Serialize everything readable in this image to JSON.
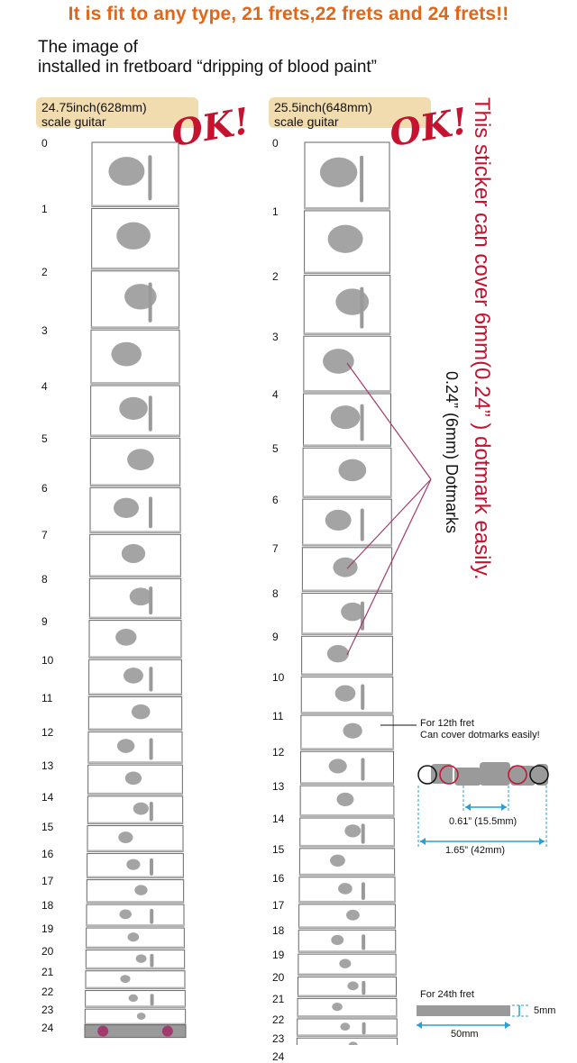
{
  "headline": "It is fit to any type, 21 frets,22 frets and 24 frets!!",
  "subtitle_line1": "The image of",
  "subtitle_line2": "installed in fretboard “dripping of blood paint”",
  "left_guitar": {
    "scale_line1": "24.75inch(628mm)",
    "scale_line2": "scale guitar",
    "ok": "OK!"
  },
  "right_guitar": {
    "scale_line1": "25.5inch(648mm)",
    "scale_line2": "scale guitar",
    "ok": "OK!"
  },
  "fret_numbers": [
    "0",
    "1",
    "2",
    "3",
    "4",
    "5",
    "6",
    "7",
    "8",
    "9",
    "10",
    "11",
    "12",
    "13",
    "14",
    "15",
    "16",
    "17",
    "18",
    "19",
    "20",
    "21",
    "22",
    "23",
    "24"
  ],
  "side_text_red": "This sticker can cover 6mm(0.24” ) dotmark easily.",
  "side_text_black": "0.24” (6mm) Dotmarks",
  "twelfth_note_line1": "For 12th fret",
  "twelfth_note_line2": "Can cover dotmarks easily!",
  "twelfth_inner_dim": "0.61” (15.5mm)",
  "twelfth_outer_dim": "1.65” (42mm)",
  "twentyfourth_note": "For 24th fret",
  "twentyfourth_height": "5mm",
  "twentyfourth_width": "50mm",
  "colors": {
    "headline": "#e0661a",
    "accent_red": "#c4122f",
    "dot_fill": "#a23a6e",
    "sticker_gray": "#9a9a9a",
    "tag_bg": "#f1dcb0",
    "dim_blue": "#2a9fd6"
  }
}
